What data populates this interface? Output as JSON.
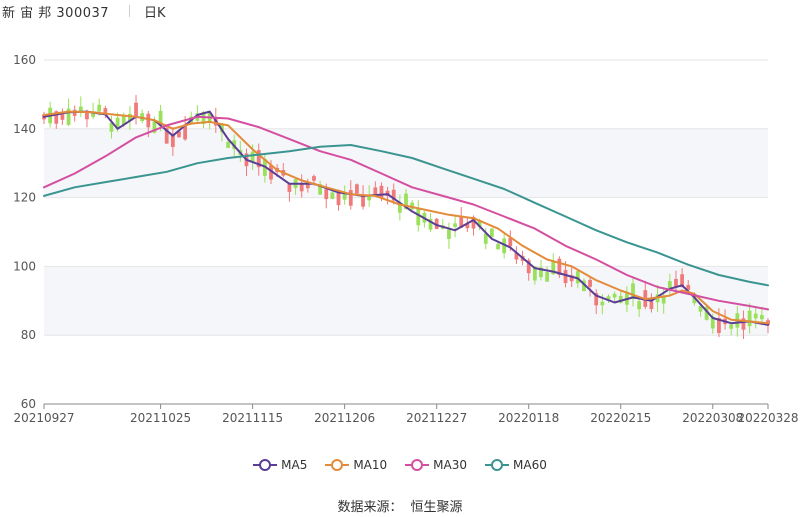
{
  "header": {
    "stock_label": "新 宙 邦 300037",
    "period_label": "日K"
  },
  "source": {
    "prefix": "数据来源：",
    "name": "恒生聚源"
  },
  "colors": {
    "up": "#f07a7a",
    "down": "#9ae05a",
    "MA5": "#5b3d96",
    "MA10": "#e38b3a",
    "MA30": "#d44fa0",
    "MA60": "#3a9591",
    "grid": "#e6e6e6",
    "band": "#f5f6fa",
    "axis": "#555555"
  },
  "chart_data": {
    "type": "candlestick",
    "ylim": [
      60,
      160
    ],
    "y_ticks": [
      60,
      80,
      100,
      120,
      140,
      160
    ],
    "x_ticks": [
      "20210927",
      "20211025",
      "20211115",
      "20211206",
      "20211227",
      "20220118",
      "20220215",
      "20220308",
      "20220328"
    ],
    "trading_days": 119,
    "x_tick_positions": [
      0,
      19,
      34,
      49,
      64,
      79,
      94,
      109,
      118
    ],
    "series": [
      {
        "name": "MA5",
        "x": [
          0,
          4,
          7,
          10,
          12,
          15,
          18,
          19,
          21,
          23,
          25,
          27,
          30,
          33,
          36,
          40,
          44,
          48,
          52,
          56,
          60,
          64,
          67,
          70,
          73,
          76,
          80,
          83,
          87,
          90,
          93,
          96,
          99,
          102,
          104,
          106,
          109,
          112,
          115,
          118
        ],
        "y": [
          143.5,
          144.8,
          145.0,
          144.2,
          140,
          143.5,
          142.5,
          141,
          138,
          141,
          144,
          145,
          137,
          131,
          129,
          124,
          124,
          121.5,
          120.5,
          121,
          116,
          112,
          110.5,
          113.5,
          108,
          105.5,
          99.5,
          98.5,
          96.5,
          91.5,
          89.5,
          91,
          90,
          93.5,
          94.5,
          91,
          85,
          83.5,
          84,
          83
        ]
      },
      {
        "name": "MA10",
        "x": [
          0,
          4,
          8,
          12,
          15,
          18,
          21,
          24,
          27,
          30,
          34,
          38,
          42,
          46,
          50,
          54,
          58,
          62,
          66,
          70,
          74,
          78,
          82,
          86,
          90,
          94,
          98,
          102,
          104,
          106,
          109,
          112,
          115,
          118
        ],
        "y": [
          144,
          145,
          144.8,
          144,
          143.5,
          142.5,
          140,
          141.5,
          142,
          141,
          134,
          128,
          125,
          123,
          121,
          120.5,
          118,
          116.5,
          115,
          114,
          111,
          106,
          102,
          100,
          96,
          93,
          90.5,
          91.5,
          93,
          92,
          87,
          84.5,
          84,
          83.5
        ]
      },
      {
        "name": "MA30",
        "x": [
          0,
          5,
          10,
          15,
          20,
          25,
          30,
          35,
          40,
          45,
          50,
          55,
          60,
          65,
          70,
          75,
          80,
          85,
          90,
          95,
          100,
          105,
          110,
          115,
          118
        ],
        "y": [
          123,
          127,
          132,
          137.5,
          141,
          143.5,
          143,
          140.5,
          137,
          133.5,
          131,
          127,
          123,
          120.5,
          118,
          114.5,
          111,
          106,
          102,
          97.5,
          94,
          92,
          90,
          88.5,
          87.5
        ]
      },
      {
        "name": "MA60",
        "x": [
          0,
          5,
          10,
          15,
          20,
          25,
          30,
          35,
          40,
          45,
          50,
          55,
          60,
          65,
          70,
          75,
          80,
          85,
          90,
          95,
          100,
          105,
          110,
          115,
          118
        ],
        "y": [
          120.5,
          123,
          124.5,
          126,
          127.5,
          130,
          131.5,
          132.5,
          133.5,
          134.8,
          135.3,
          133.5,
          131.5,
          128.5,
          125.5,
          122.5,
          118.5,
          114.5,
          110.5,
          107,
          104,
          100.5,
          97.5,
          95.5,
          94.5
        ]
      }
    ],
    "legend": [
      "MA5",
      "MA10",
      "MA30",
      "MA60"
    ]
  }
}
